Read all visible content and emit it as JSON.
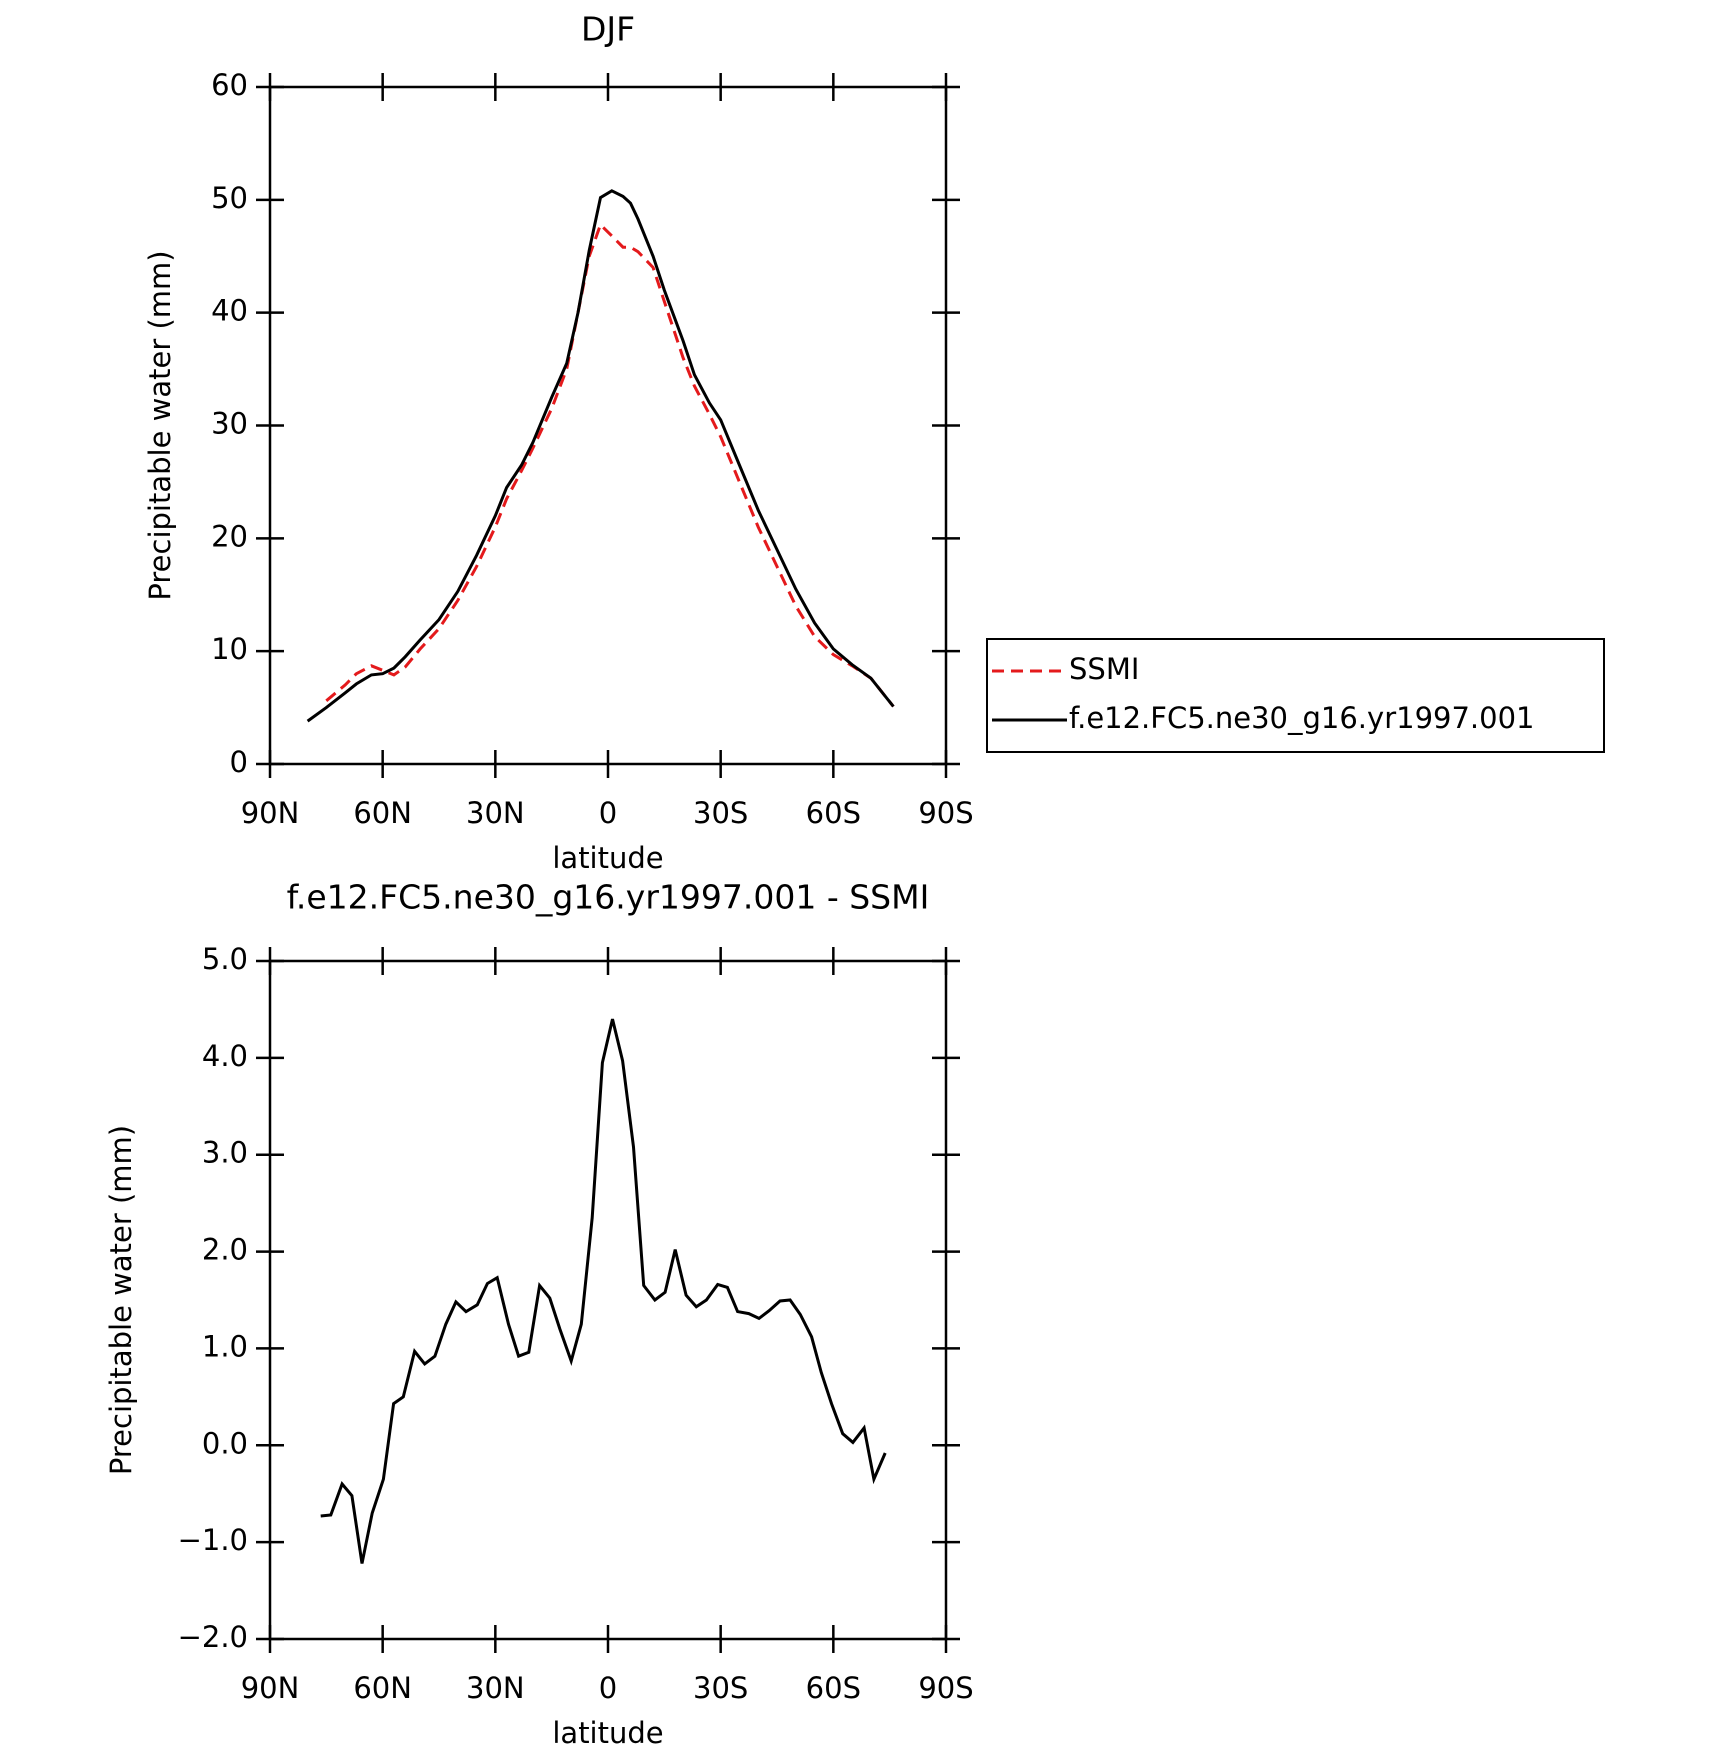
{
  "chart_data": [
    {
      "type": "line",
      "title": "DJF",
      "x_label": "latitude",
      "y_label": "Precipitable water (mm)",
      "x": [
        80,
        75,
        70,
        67,
        63,
        60,
        57,
        54,
        50,
        45,
        40,
        35,
        30,
        27,
        23,
        20,
        15,
        11,
        8,
        5,
        2,
        -1,
        -4,
        -6,
        -8,
        -12,
        -15,
        -20,
        -23,
        -27,
        -30,
        -35,
        -40,
        -45,
        -50,
        -55,
        -60,
        -65,
        -70,
        -76
      ],
      "series": [
        {
          "name": "SSMI",
          "color": "#e41a1c",
          "dash": true,
          "values": [
            null,
            5.6,
            7.0,
            8.0,
            8.7,
            8.3,
            7.9,
            8.6,
            10.2,
            12.0,
            14.5,
            17.5,
            21.0,
            23.5,
            26.0,
            28.0,
            31.5,
            35.0,
            40.0,
            45.0,
            47.8,
            46.8,
            45.8,
            45.8,
            45.4,
            44.0,
            41.0,
            36.0,
            33.5,
            31.0,
            29.0,
            25.0,
            21.0,
            17.5,
            14.0,
            11.3,
            9.7,
            8.7,
            7.6,
            5.1
          ]
        },
        {
          "name": "f.e12.FC5.ne30_g16.yr1997.001",
          "color": "#000000",
          "dash": false,
          "values": [
            3.8,
            5.0,
            6.3,
            7.1,
            7.9,
            8.0,
            8.5,
            9.5,
            11.0,
            12.8,
            15.3,
            18.5,
            22.0,
            24.5,
            26.5,
            28.5,
            32.5,
            35.5,
            40.0,
            45.5,
            50.2,
            50.8,
            50.3,
            49.7,
            48.3,
            45.0,
            42.0,
            37.5,
            34.5,
            32.0,
            30.5,
            26.5,
            22.5,
            19.0,
            15.5,
            12.5,
            10.2,
            8.8,
            7.6,
            5.1
          ]
        }
      ],
      "xlim": [
        90,
        -90
      ],
      "xticks": [
        {
          "value": 90,
          "label": "90N"
        },
        {
          "value": 60,
          "label": "60N"
        },
        {
          "value": 30,
          "label": "30N"
        },
        0,
        {
          "value": -30,
          "label": "30S"
        },
        {
          "value": -60,
          "label": "60S"
        },
        {
          "value": -90,
          "label": "90S"
        }
      ],
      "ylim": [
        0,
        60
      ],
      "yticks": [
        0,
        10,
        20,
        30,
        40,
        50,
        60
      ],
      "legend": "right"
    },
    {
      "type": "line",
      "title": "f.e12.FC5.ne30_g16.yr1997.001 - SSMI",
      "x_label": "latitude",
      "y_label": "Precipitable water (mm)",
      "x": [
        76.5,
        73.8,
        70.8,
        68.2,
        65.5,
        62.8,
        59.8,
        57.1,
        54.5,
        51.5,
        48.8,
        46.1,
        43.2,
        40.5,
        37.8,
        34.8,
        32.1,
        29.5,
        26.5,
        23.8,
        21.1,
        18.2,
        15.5,
        12.8,
        9.8,
        7.1,
        4.2,
        1.5,
        -1.2,
        -3.9,
        -6.8,
        -9.5,
        -12.5,
        -15.2,
        -17.9,
        -20.8,
        -23.5,
        -26.2,
        -29.2,
        -31.8,
        -34.5,
        -37.5,
        -40.2,
        -42.9,
        -45.8,
        -48.5,
        -51.2,
        -54.2,
        -56.8,
        -59.5,
        -62.5,
        -65.2,
        -68.2,
        -70.8,
        -73.8
      ],
      "values": [
        -0.73,
        -0.72,
        -0.4,
        -0.52,
        -1.22,
        -0.7,
        -0.35,
        0.43,
        0.5,
        0.97,
        0.84,
        0.92,
        1.25,
        1.48,
        1.38,
        1.45,
        1.67,
        1.73,
        1.25,
        0.92,
        0.96,
        1.65,
        1.52,
        1.2,
        0.87,
        1.25,
        2.35,
        3.95,
        4.4,
        3.97,
        3.08,
        1.65,
        1.5,
        1.58,
        2.02,
        1.55,
        1.43,
        1.5,
        1.66,
        1.63,
        1.38,
        1.36,
        1.31,
        1.39,
        1.49,
        1.5,
        1.35,
        1.12,
        0.75,
        0.43,
        0.12,
        0.03,
        0.18,
        -0.35,
        -0.08
      ],
      "color": "#000000",
      "xlim": [
        90,
        -90
      ],
      "xticks": [
        {
          "value": 90,
          "label": "90N"
        },
        {
          "value": 60,
          "label": "60N"
        },
        {
          "value": 30,
          "label": "30N"
        },
        0,
        {
          "value": -30,
          "label": "30S"
        },
        {
          "value": -60,
          "label": "60S"
        },
        {
          "value": -90,
          "label": "90S"
        }
      ],
      "ylim": [
        -2,
        5
      ],
      "yticks": [
        {
          "value": -2,
          "label": "−2.0"
        },
        {
          "value": -1,
          "label": "−1.0"
        },
        {
          "value": 0,
          "label": "0.0"
        },
        {
          "value": 1,
          "label": "1.0"
        },
        {
          "value": 2,
          "label": "2.0"
        },
        {
          "value": 3,
          "label": "3.0"
        },
        {
          "value": 4,
          "label": "4.0"
        },
        {
          "value": 5,
          "label": "5.0"
        }
      ]
    }
  ]
}
